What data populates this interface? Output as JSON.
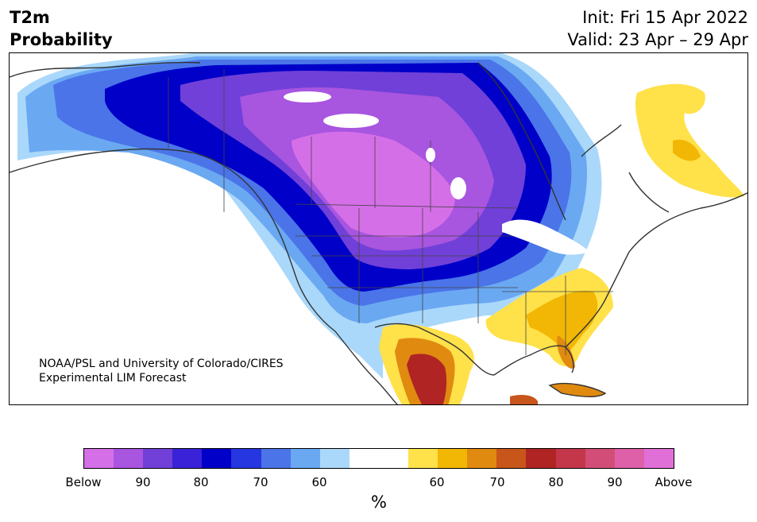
{
  "header": {
    "title_line1": "T2m",
    "title_line2": "Probability",
    "init_text": "Init: Fri 15 Apr 2022",
    "valid_text": "Valid: 23 Apr – 29 Apr"
  },
  "credit": {
    "line1": "NOAA/PSL and University of Colorado/CIRES",
    "line2": "Experimental LIM Forecast"
  },
  "colorbar": {
    "colors": [
      "#d56fe8",
      "#a855e0",
      "#7040d8",
      "#3a22d8",
      "#0000c8",
      "#2636e0",
      "#4a74e8",
      "#6aa8f2",
      "#aad8fa",
      "#ffffff",
      "#ffffff",
      "#ffe14a",
      "#f2b705",
      "#e08a10",
      "#c8551a",
      "#b02424",
      "#c4364a",
      "#d24e78",
      "#de60a8",
      "#e070d8"
    ],
    "tick_labels": [
      "Below",
      "90",
      "80",
      "70",
      "60",
      "60",
      "70",
      "80",
      "90",
      "Above"
    ],
    "unit": "%"
  },
  "map_colors": {
    "land": "#ffffff",
    "coast": "#333333",
    "border": "#444444"
  }
}
